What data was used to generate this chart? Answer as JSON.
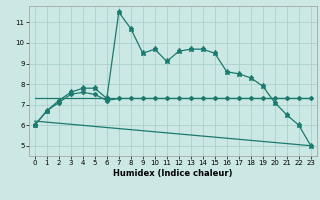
{
  "xlabel": "Humidex (Indice chaleur)",
  "bg_color": "#cce8e4",
  "grid_color": "#aacfcc",
  "line_color": "#1a7a6e",
  "xlim": [
    -0.5,
    23.5
  ],
  "ylim": [
    4.5,
    11.8
  ],
  "yticks": [
    5,
    6,
    7,
    8,
    9,
    10,
    11
  ],
  "xticks": [
    0,
    1,
    2,
    3,
    4,
    5,
    6,
    7,
    8,
    9,
    10,
    11,
    12,
    13,
    14,
    15,
    16,
    17,
    18,
    19,
    20,
    21,
    22,
    23
  ],
  "line1_x": [
    0,
    1,
    2,
    3,
    4,
    5,
    6,
    7,
    8,
    9,
    10,
    11,
    12,
    13,
    14,
    15,
    16,
    17,
    18,
    19,
    20,
    21,
    22,
    23
  ],
  "line1_y": [
    6.0,
    6.7,
    7.2,
    7.6,
    7.8,
    7.8,
    7.3,
    11.5,
    10.7,
    9.5,
    9.7,
    9.1,
    9.6,
    9.7,
    9.7,
    9.5,
    8.6,
    8.5,
    8.3,
    7.9,
    7.1,
    6.5,
    6.0,
    5.0
  ],
  "line2_x": [
    0,
    1,
    2,
    3,
    4,
    5,
    6,
    7,
    8,
    9,
    10,
    11,
    12,
    13,
    14,
    15,
    16,
    17,
    18,
    19,
    20,
    21,
    22,
    23
  ],
  "line2_y": [
    6.0,
    6.7,
    7.1,
    7.5,
    7.6,
    7.5,
    7.2,
    7.3,
    7.3,
    7.3,
    7.3,
    7.3,
    7.3,
    7.3,
    7.3,
    7.3,
    7.3,
    7.3,
    7.3,
    7.3,
    7.3,
    7.3,
    7.3,
    7.3
  ],
  "line3_x": [
    0,
    23
  ],
  "line3_y": [
    7.3,
    7.3
  ],
  "line4_x": [
    0,
    23
  ],
  "line4_y": [
    6.2,
    5.0
  ],
  "xlabel_fontsize": 6,
  "tick_fontsize": 5,
  "linewidth": 0.9,
  "markersize": 2.5
}
